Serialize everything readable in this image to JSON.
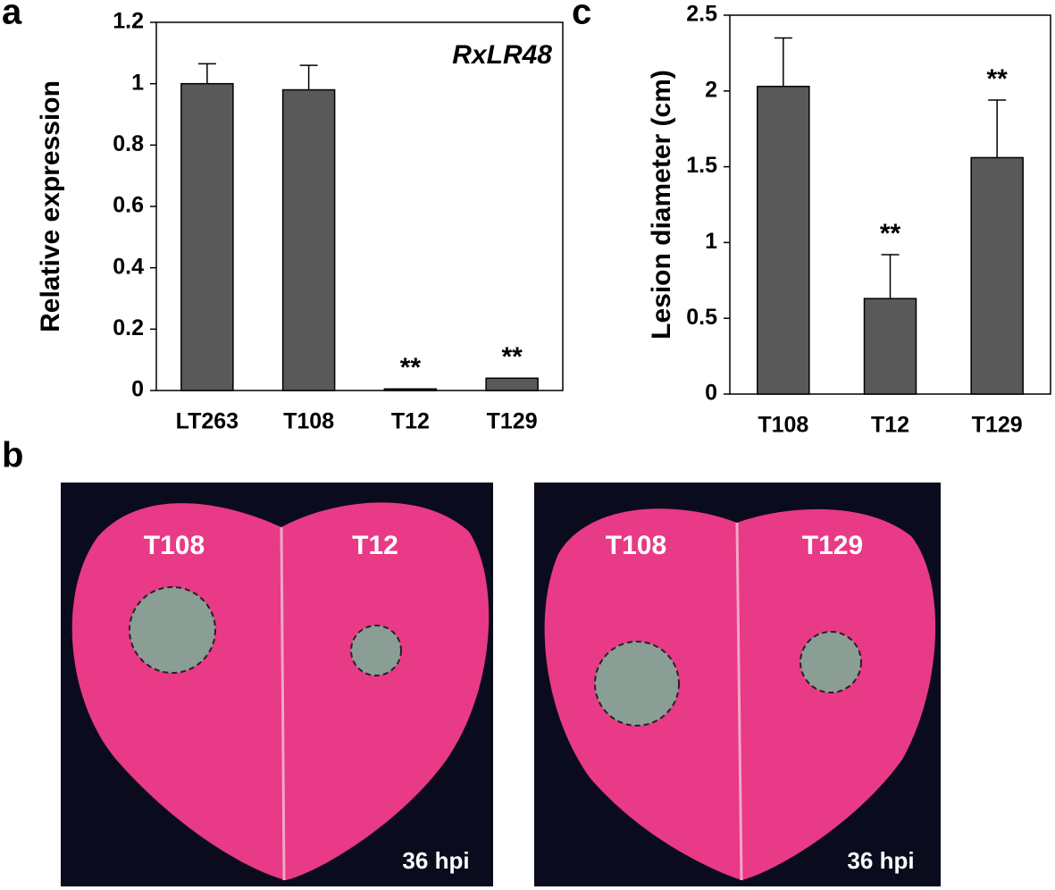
{
  "panels": [
    "a",
    "b",
    "c"
  ],
  "chart_data": [
    {
      "type": "bar",
      "annotation": "RxLR48",
      "ylabel": "Relative expression",
      "categories": [
        "LT263",
        "T108",
        "T12",
        "T129"
      ],
      "values": [
        1.0,
        0.98,
        0.005,
        0.04
      ],
      "errors": [
        0.065,
        0.08,
        0,
        0
      ],
      "significance": [
        null,
        null,
        "**",
        "**"
      ],
      "color": "#595959",
      "ylim": [
        0,
        1.2
      ],
      "yticks": [
        0,
        0.2,
        0.4,
        0.6,
        0.8,
        1,
        1.2
      ]
    },
    {
      "type": "bar",
      "ylabel": "Lesion diameter (cm)",
      "categories": [
        "T108",
        "T12",
        "T129"
      ],
      "values": [
        2.03,
        0.63,
        1.56
      ],
      "errors": [
        0.32,
        0.29,
        0.38
      ],
      "significance": [
        null,
        "**",
        "**"
      ],
      "color": "#595959",
      "ylim": [
        0,
        2.5
      ],
      "yticks": [
        0,
        0.5,
        1,
        1.5,
        2,
        2.5
      ]
    }
  ],
  "photos": [
    {
      "labels": [
        "T108",
        "T12"
      ],
      "time": "36 hpi"
    },
    {
      "labels": [
        "T108",
        "T129"
      ],
      "time": "36 hpi"
    }
  ]
}
